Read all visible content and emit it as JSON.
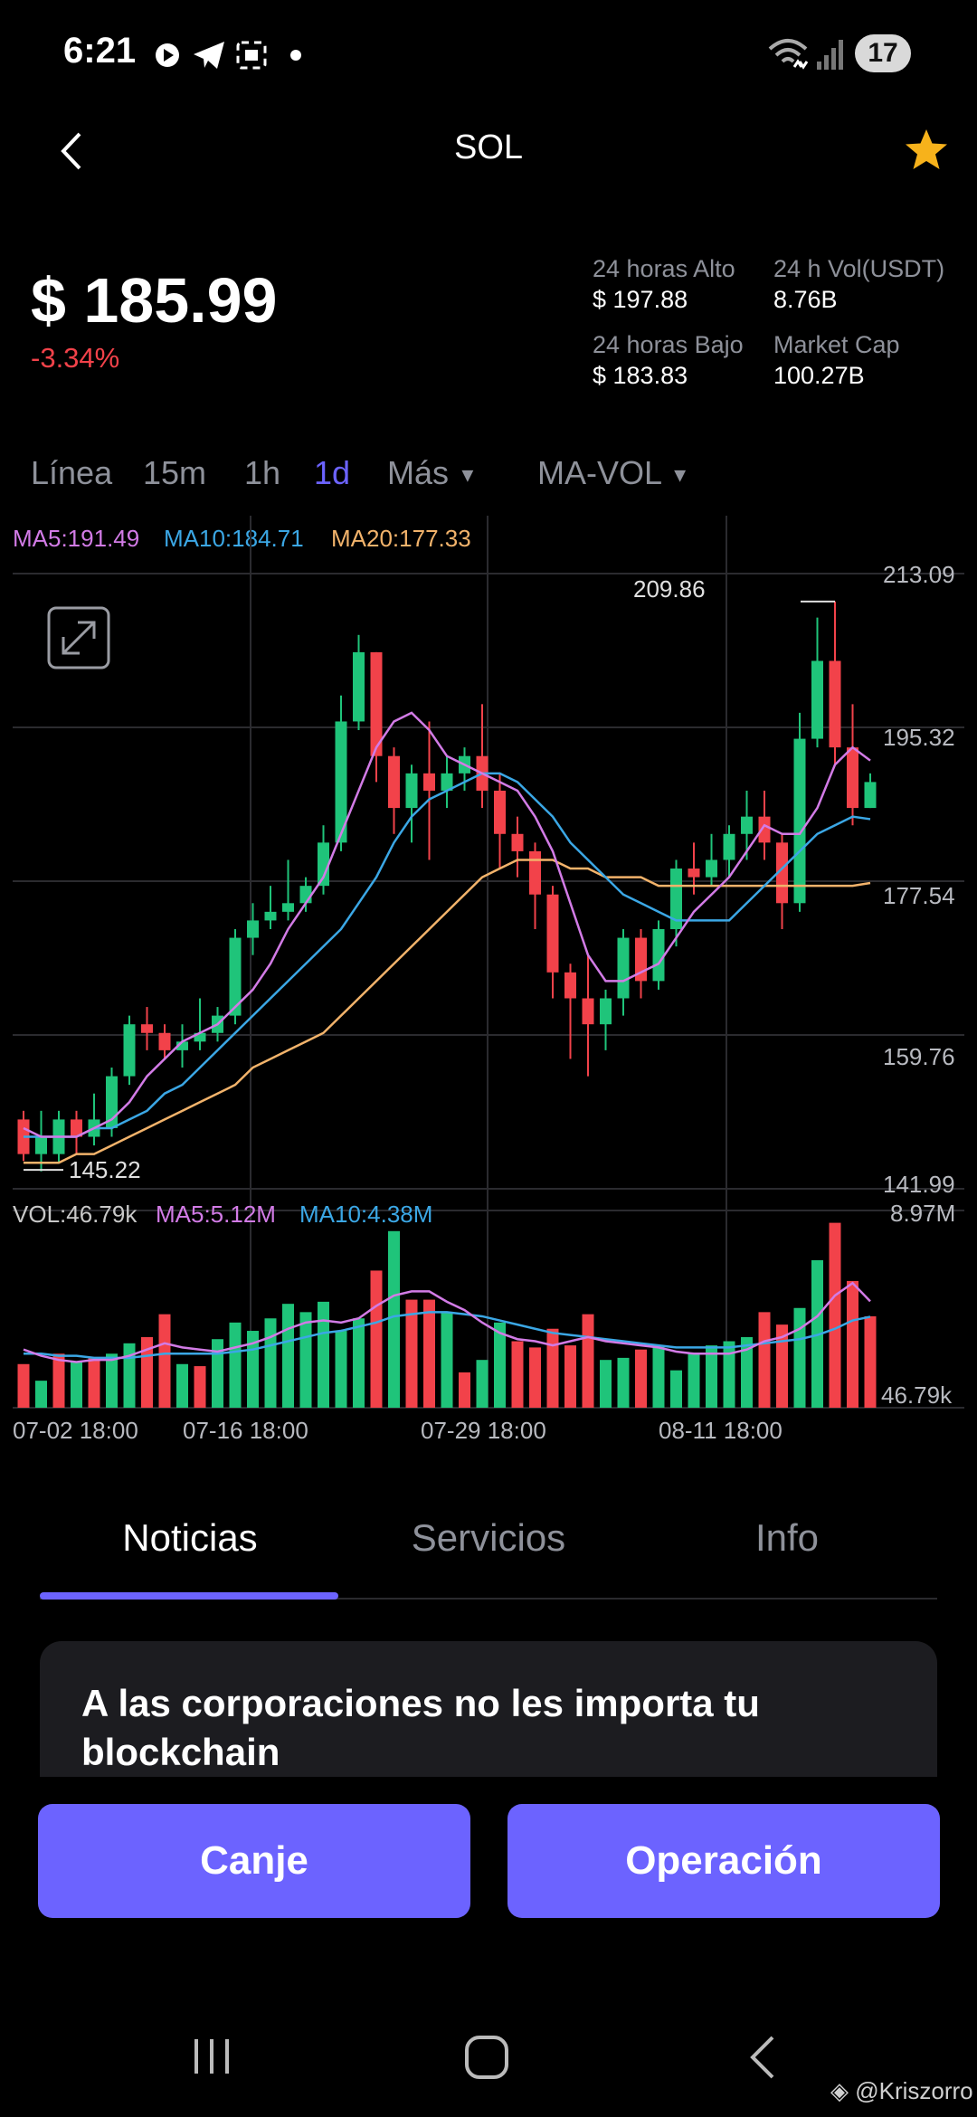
{
  "status_bar": {
    "time": "6:21",
    "battery": "17",
    "icons": [
      "youtube-play-icon",
      "telegram-icon",
      "screenshot-icon",
      "dot-icon",
      "wifi-icon",
      "signal-icon"
    ]
  },
  "header": {
    "title": "SOL",
    "back_icon": "back-arrow-icon",
    "favorite_icon": "star-icon",
    "favorite_color": "#f7b21b"
  },
  "price": {
    "value": "$ 185.99",
    "change": "-3.34%",
    "change_color": "#f2424a"
  },
  "stats": {
    "high_label": "24 horas Alto",
    "high_value": "$ 197.88",
    "vol_label": "24 h Vol(USDT)",
    "vol_value": "8.76B",
    "low_label": "24 horas Bajo",
    "low_value": "$ 183.83",
    "cap_label": "Market Cap",
    "cap_value": "100.27B"
  },
  "timeframes": {
    "linea": "Línea",
    "m15": "15m",
    "h1": "1h",
    "d1": "1d",
    "mas": "Más",
    "indicator": "MA-VOL",
    "active": "1d",
    "active_color": "#6c63ff"
  },
  "colors": {
    "up": "#1fc47a",
    "down": "#f2424a",
    "ma5": "#d27be6",
    "ma10": "#3ba7e5",
    "ma20": "#f2b36b",
    "accent": "#6c63ff"
  },
  "chart_data": {
    "type": "candlestick",
    "title": "",
    "legend": {
      "ma5": "MA5:191.49",
      "ma10": "MA10:184.71",
      "ma20": "MA20:177.33"
    },
    "y_ticks": [
      "213.09",
      "195.32",
      "177.54",
      "159.76",
      "141.99"
    ],
    "ylim": [
      141.99,
      213.09
    ],
    "x_ticks": [
      "07-02 18:00",
      "07-16 18:00",
      "07-29 18:00",
      "08-11 18:00"
    ],
    "annotations": {
      "high": "209.86",
      "low": "145.22"
    },
    "candles": [
      [
        150,
        146,
        151,
        145.2
      ],
      [
        146,
        148,
        151,
        144
      ],
      [
        146,
        150,
        151,
        145
      ],
      [
        150,
        148,
        151,
        146
      ],
      [
        148,
        150,
        153,
        147
      ],
      [
        149,
        155,
        156,
        148
      ],
      [
        155,
        161,
        162,
        154
      ],
      [
        161,
        160,
        163,
        158
      ],
      [
        160,
        158,
        161,
        157
      ],
      [
        158,
        159,
        161,
        156
      ],
      [
        159,
        160,
        164,
        158
      ],
      [
        160,
        162,
        163,
        159
      ],
      [
        162,
        171,
        172,
        161
      ],
      [
        171,
        173,
        175,
        169
      ],
      [
        173,
        174,
        177,
        172
      ],
      [
        174,
        175,
        180,
        173
      ],
      [
        175,
        177,
        178,
        174
      ],
      [
        177,
        182,
        184,
        176
      ],
      [
        182,
        196,
        199,
        181
      ],
      [
        196,
        204,
        206,
        195
      ],
      [
        204,
        192,
        204,
        189
      ],
      [
        192,
        186,
        193,
        183
      ],
      [
        186,
        190,
        191,
        182
      ],
      [
        190,
        188,
        196,
        180
      ],
      [
        188,
        190,
        192,
        186
      ],
      [
        190,
        192,
        193,
        188
      ],
      [
        192,
        188,
        198,
        186
      ],
      [
        188,
        183,
        190,
        179
      ],
      [
        183,
        181,
        185,
        178
      ],
      [
        181,
        176,
        182,
        172
      ],
      [
        176,
        167,
        177,
        164
      ],
      [
        167,
        164,
        168,
        157
      ],
      [
        164,
        161,
        169,
        155
      ],
      [
        161,
        164,
        165,
        158
      ],
      [
        164,
        171,
        172,
        162
      ],
      [
        171,
        166,
        172,
        164
      ],
      [
        166,
        172,
        173,
        165
      ],
      [
        172,
        179,
        180,
        170
      ],
      [
        179,
        178,
        182,
        176
      ],
      [
        178,
        180,
        183,
        177
      ],
      [
        180,
        183,
        184,
        178
      ],
      [
        183,
        185,
        188,
        180
      ],
      [
        185,
        182,
        188,
        180
      ],
      [
        182,
        175,
        183,
        172
      ],
      [
        175,
        194,
        197,
        174
      ],
      [
        194,
        203,
        208,
        193
      ],
      [
        203,
        193,
        209.86,
        191
      ],
      [
        193,
        186,
        198,
        184
      ],
      [
        186,
        189,
        190,
        186
      ]
    ],
    "ma5_line": [
      149,
      148,
      148,
      148,
      149,
      150,
      152,
      155,
      157,
      159,
      160,
      161,
      163,
      165,
      168,
      172,
      175,
      178,
      183,
      188,
      193,
      196,
      197,
      195,
      192,
      191,
      190,
      189,
      188,
      185,
      181,
      175,
      169,
      166,
      166,
      167,
      168,
      171,
      174,
      176,
      178,
      181,
      184,
      183,
      183,
      186,
      191,
      193,
      191.49
    ],
    "ma10_line": [
      148,
      148,
      148,
      148,
      149,
      149,
      150,
      151,
      153,
      154,
      156,
      158,
      160,
      162,
      164,
      166,
      168,
      170,
      172,
      175,
      178,
      182,
      185,
      187,
      188,
      189,
      190,
      190,
      189,
      187,
      185,
      182,
      180,
      178,
      176,
      175,
      174,
      173,
      173,
      173,
      173,
      175,
      177,
      179,
      181,
      183,
      184,
      185,
      184.71
    ],
    "ma20_line": [
      145,
      145,
      145,
      146,
      146,
      147,
      148,
      149,
      150,
      151,
      152,
      153,
      154,
      156,
      157,
      158,
      159,
      160,
      162,
      164,
      166,
      168,
      170,
      172,
      174,
      176,
      178,
      179,
      180,
      180,
      180,
      179,
      179,
      178,
      178,
      178,
      177,
      177,
      177,
      177,
      177,
      177,
      177,
      177,
      177,
      177,
      177,
      177,
      177.33
    ],
    "volume": {
      "legend": {
        "vol": "VOL:46.79k",
        "ma5": "MA5:5.12M",
        "ma10": "MA10:4.38M"
      },
      "y_ticks": [
        "8.97M",
        "46.79k"
      ],
      "ylim": [
        0,
        8.97
      ],
      "values": [
        2.1,
        1.3,
        2.6,
        2.2,
        2.4,
        2.6,
        3.1,
        3.4,
        4.5,
        2.1,
        2.0,
        3.3,
        4.1,
        3.7,
        4.3,
        5.0,
        4.6,
        5.1,
        3.7,
        4.3,
        6.6,
        8.5,
        5.2,
        5.2,
        4.6,
        1.7,
        2.3,
        4.1,
        3.2,
        2.9,
        3.8,
        3.0,
        4.5,
        2.3,
        2.4,
        2.8,
        3.0,
        1.8,
        2.6,
        3.0,
        3.2,
        3.4,
        4.6,
        4.0,
        4.8,
        7.1,
        8.9,
        6.1,
        4.4
      ],
      "ma5_line": [
        2.8,
        2.5,
        2.3,
        2.2,
        2.3,
        2.3,
        2.5,
        2.8,
        3.1,
        2.9,
        2.8,
        2.7,
        2.9,
        3.1,
        3.4,
        3.8,
        4.1,
        4.2,
        4.1,
        4.3,
        4.9,
        5.4,
        5.6,
        5.6,
        5.1,
        4.7,
        4.1,
        3.6,
        3.3,
        3.2,
        3.0,
        3.2,
        3.4,
        3.2,
        3.1,
        3.0,
        2.9,
        2.7,
        2.6,
        2.6,
        2.6,
        2.8,
        3.2,
        3.4,
        3.8,
        4.4,
        5.4,
        6.0,
        5.12
      ],
      "ma10_line": [
        2.6,
        2.6,
        2.5,
        2.5,
        2.4,
        2.4,
        2.4,
        2.5,
        2.6,
        2.6,
        2.6,
        2.6,
        2.7,
        2.8,
        3.0,
        3.2,
        3.4,
        3.6,
        3.7,
        3.9,
        4.1,
        4.4,
        4.5,
        4.6,
        4.6,
        4.5,
        4.4,
        4.2,
        4.0,
        3.8,
        3.6,
        3.5,
        3.4,
        3.3,
        3.2,
        3.1,
        3.0,
        2.9,
        2.9,
        2.9,
        2.9,
        3.0,
        3.1,
        3.2,
        3.3,
        3.5,
        3.8,
        4.2,
        4.38
      ],
      "bar_colors": [
        "d",
        "u",
        "d",
        "u",
        "d",
        "u",
        "u",
        "d",
        "d",
        "u",
        "d",
        "u",
        "u",
        "u",
        "u",
        "u",
        "u",
        "u",
        "u",
        "u",
        "d",
        "u",
        "d",
        "d",
        "u",
        "d",
        "u",
        "u",
        "d",
        "d",
        "d",
        "d",
        "d",
        "u",
        "u",
        "d",
        "u",
        "u",
        "u",
        "u",
        "u",
        "u",
        "d",
        "d",
        "u",
        "u",
        "d",
        "d",
        "d"
      ]
    }
  },
  "expand_icon": "expand-icon",
  "tabs": {
    "news": "Noticias",
    "services": "Servicios",
    "info": "Info"
  },
  "news": {
    "title": "A las corporaciones no les importa tu blockchain"
  },
  "actions": {
    "swap": "Canje",
    "trade": "Operación"
  },
  "navbar": {
    "recents_icon": "recents-icon",
    "home_icon": "home-icon",
    "back_icon": "nav-back-icon"
  },
  "watermark": "@Kriszorro"
}
